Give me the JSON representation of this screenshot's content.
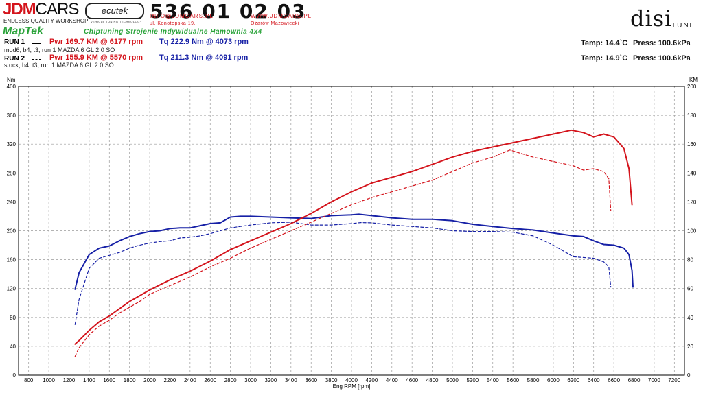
{
  "header": {
    "brand_left_red": "JDM",
    "brand_left_black": "CARS",
    "brand_sub": "ENDLESS QUALITY WORKSHOP",
    "ecutek": "ecutek",
    "ecutek_sub": "VEHICLE TUNING TECHNOLOGY",
    "phone": "536 01 02 03",
    "email": "INFO@JDMCARS.PL",
    "www": "WWW.JDMCARS.PL",
    "address": "ul. Konotopska 19,",
    "city": "Ożarów Mazowiecki",
    "maptek": "MapTek",
    "tagline": "Chiptuning Strojenie Indywidualne Hamownia 4x4",
    "disi": "disi",
    "disi_sub": "TUNE"
  },
  "runs": [
    {
      "label": "RUN 1",
      "desc": "mod6, b4, t3, run 1 MAZDA 6 GL 2.0 SO",
      "pwr": "Pwr  169.7 KM @ 6177 rpm",
      "tq": "Tq 222.9 Nm @ 4073 rpm",
      "temp": "Temp: 14.4`C",
      "press": "Press: 100.6kPa",
      "style": "solid"
    },
    {
      "label": "RUN 2",
      "desc": "stock, b4, t3, run 1 MAZDA 6 GL 2.0 SO",
      "pwr": "Pwr  155.9 KM @ 5570 rpm",
      "tq": "Tq 211.3 Nm @ 4091 rpm",
      "temp": "Temp: 14.9`C",
      "press": "Press: 100.6kPa",
      "style": "dashed"
    }
  ],
  "colors": {
    "power": "#d4141c",
    "torque": "#1620a6",
    "grid": "#9a9a9a"
  },
  "chart_data": {
    "type": "line",
    "xlabel": "Eng RPM [rpm]",
    "ylabel_left": "Nm",
    "ylabel_right": "KM",
    "xlim": [
      700,
      7300
    ],
    "ylim_left": [
      0,
      400
    ],
    "ylim_right": [
      0,
      200
    ],
    "x_ticks": [
      800,
      1000,
      1200,
      1400,
      1600,
      1800,
      2000,
      2200,
      2400,
      2600,
      2800,
      3000,
      3200,
      3400,
      3600,
      3800,
      4000,
      4200,
      4400,
      4600,
      4800,
      5000,
      5200,
      5400,
      5600,
      5800,
      6000,
      6200,
      6400,
      6600,
      6800,
      7000,
      7200
    ],
    "y_ticks_left": [
      0,
      40,
      80,
      120,
      160,
      200,
      240,
      280,
      320,
      360,
      400
    ],
    "y_ticks_right": [
      0,
      20,
      40,
      60,
      80,
      100,
      120,
      140,
      160,
      180,
      200
    ],
    "grid": true,
    "series": [
      {
        "run": "RUN 1",
        "quantity": "torque",
        "axis": "left",
        "color": "#1620a6",
        "dash": "solid",
        "points": [
          [
            1260,
            119
          ],
          [
            1300,
            142
          ],
          [
            1400,
            167
          ],
          [
            1500,
            176
          ],
          [
            1600,
            179
          ],
          [
            1700,
            186
          ],
          [
            1800,
            192
          ],
          [
            1900,
            196
          ],
          [
            2000,
            199
          ],
          [
            2100,
            200
          ],
          [
            2200,
            203
          ],
          [
            2300,
            204
          ],
          [
            2400,
            204
          ],
          [
            2500,
            207
          ],
          [
            2600,
            210
          ],
          [
            2700,
            211
          ],
          [
            2800,
            219
          ],
          [
            2900,
            220
          ],
          [
            3000,
            220
          ],
          [
            3200,
            219
          ],
          [
            3400,
            218
          ],
          [
            3600,
            217
          ],
          [
            3800,
            221
          ],
          [
            4000,
            222
          ],
          [
            4073,
            222.9
          ],
          [
            4200,
            221
          ],
          [
            4400,
            218
          ],
          [
            4600,
            216
          ],
          [
            4800,
            216
          ],
          [
            5000,
            214
          ],
          [
            5200,
            209
          ],
          [
            5400,
            206
          ],
          [
            5600,
            203
          ],
          [
            5800,
            201
          ],
          [
            6000,
            197
          ],
          [
            6200,
            193
          ],
          [
            6300,
            192
          ],
          [
            6400,
            186
          ],
          [
            6500,
            181
          ],
          [
            6600,
            180
          ],
          [
            6700,
            176
          ],
          [
            6750,
            167
          ],
          [
            6780,
            145
          ],
          [
            6790,
            122
          ]
        ]
      },
      {
        "run": "RUN 2",
        "quantity": "torque",
        "axis": "left",
        "color": "#1620a6",
        "dash": "dashed",
        "points": [
          [
            1260,
            70
          ],
          [
            1300,
            105
          ],
          [
            1400,
            148
          ],
          [
            1500,
            162
          ],
          [
            1600,
            166
          ],
          [
            1700,
            170
          ],
          [
            1800,
            176
          ],
          [
            1900,
            180
          ],
          [
            2000,
            183
          ],
          [
            2100,
            185
          ],
          [
            2200,
            186
          ],
          [
            2300,
            190
          ],
          [
            2400,
            191
          ],
          [
            2500,
            193
          ],
          [
            2600,
            196
          ],
          [
            2700,
            200
          ],
          [
            2800,
            204
          ],
          [
            2900,
            206
          ],
          [
            3000,
            208
          ],
          [
            3200,
            211
          ],
          [
            3400,
            212
          ],
          [
            3600,
            208
          ],
          [
            3800,
            208
          ],
          [
            4000,
            210
          ],
          [
            4091,
            211.3
          ],
          [
            4200,
            211
          ],
          [
            4400,
            208
          ],
          [
            4600,
            206
          ],
          [
            4800,
            204
          ],
          [
            5000,
            200
          ],
          [
            5200,
            199
          ],
          [
            5400,
            199
          ],
          [
            5600,
            198
          ],
          [
            5800,
            193
          ],
          [
            6000,
            180
          ],
          [
            6200,
            164
          ],
          [
            6400,
            162
          ],
          [
            6500,
            157
          ],
          [
            6550,
            150
          ],
          [
            6570,
            122
          ]
        ]
      },
      {
        "run": "RUN 1",
        "quantity": "power",
        "axis": "right",
        "color": "#d4141c",
        "dash": "solid",
        "points": [
          [
            1260,
            21.5
          ],
          [
            1300,
            24
          ],
          [
            1400,
            31
          ],
          [
            1500,
            37
          ],
          [
            1600,
            41
          ],
          [
            1700,
            46
          ],
          [
            1800,
            51
          ],
          [
            1900,
            55
          ],
          [
            2000,
            59
          ],
          [
            2200,
            66
          ],
          [
            2400,
            72
          ],
          [
            2600,
            79
          ],
          [
            2800,
            87
          ],
          [
            3000,
            93
          ],
          [
            3200,
            99
          ],
          [
            3400,
            105
          ],
          [
            3600,
            112
          ],
          [
            3800,
            120
          ],
          [
            4000,
            127
          ],
          [
            4200,
            133
          ],
          [
            4400,
            137
          ],
          [
            4600,
            141
          ],
          [
            4800,
            146
          ],
          [
            5000,
            151
          ],
          [
            5200,
            155
          ],
          [
            5400,
            158
          ],
          [
            5600,
            161
          ],
          [
            5800,
            164
          ],
          [
            6000,
            167
          ],
          [
            6177,
            169.7
          ],
          [
            6300,
            168
          ],
          [
            6400,
            165
          ],
          [
            6500,
            167
          ],
          [
            6600,
            165
          ],
          [
            6700,
            157
          ],
          [
            6750,
            143
          ],
          [
            6780,
            118
          ]
        ]
      },
      {
        "run": "RUN 2",
        "quantity": "power",
        "axis": "right",
        "color": "#d4141c",
        "dash": "dashed",
        "points": [
          [
            1260,
            13
          ],
          [
            1300,
            19
          ],
          [
            1400,
            28
          ],
          [
            1500,
            34
          ],
          [
            1600,
            38
          ],
          [
            1700,
            43
          ],
          [
            1800,
            47
          ],
          [
            1900,
            51
          ],
          [
            2000,
            56
          ],
          [
            2200,
            62
          ],
          [
            2400,
            68
          ],
          [
            2600,
            75
          ],
          [
            2800,
            81
          ],
          [
            3000,
            88
          ],
          [
            3200,
            94
          ],
          [
            3400,
            100
          ],
          [
            3600,
            106
          ],
          [
            3800,
            112
          ],
          [
            4000,
            118
          ],
          [
            4200,
            123
          ],
          [
            4400,
            127
          ],
          [
            4600,
            131
          ],
          [
            4800,
            135
          ],
          [
            5000,
            141
          ],
          [
            5200,
            147
          ],
          [
            5400,
            151
          ],
          [
            5570,
            155.9
          ],
          [
            5800,
            151
          ],
          [
            6000,
            148
          ],
          [
            6200,
            145
          ],
          [
            6300,
            142
          ],
          [
            6400,
            143
          ],
          [
            6500,
            141
          ],
          [
            6550,
            136
          ],
          [
            6570,
            114
          ]
        ]
      }
    ]
  }
}
